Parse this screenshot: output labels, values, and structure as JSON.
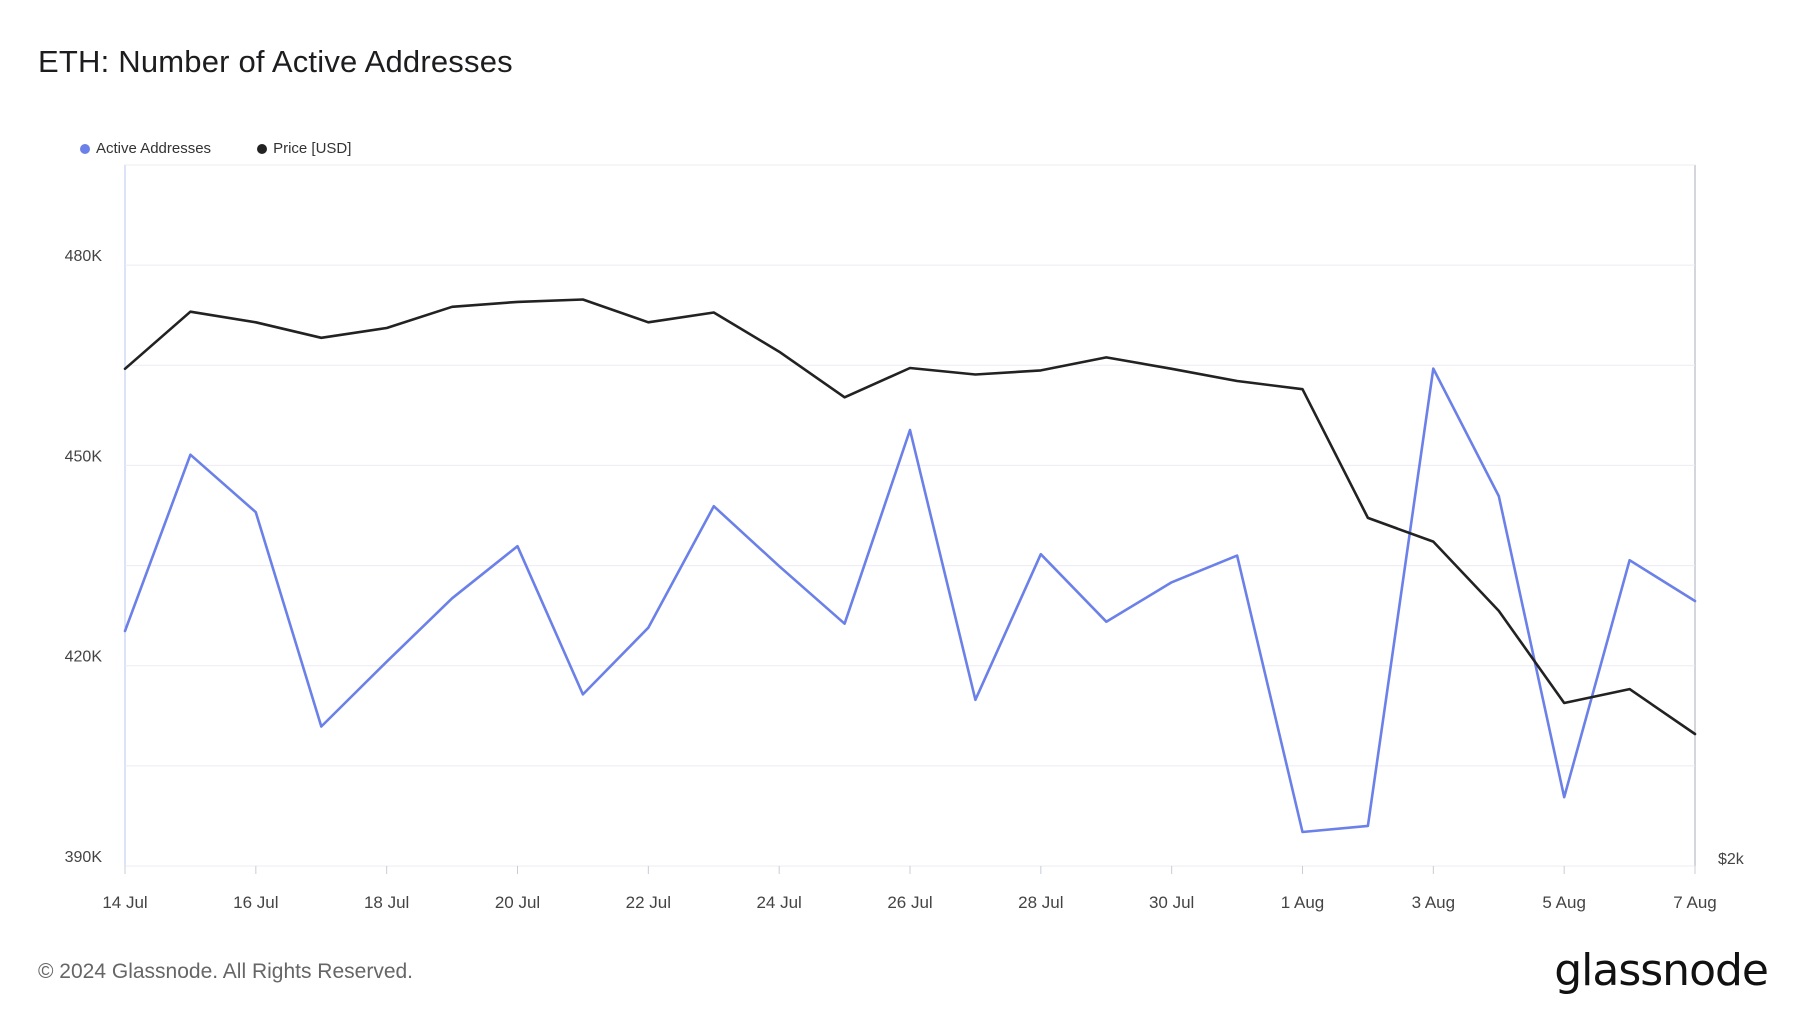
{
  "header": {
    "title": "ETH: Number of Active Addresses"
  },
  "legend": {
    "items": [
      {
        "label": "Active Addresses",
        "color": "#6b80e8"
      },
      {
        "label": "Price [USD]",
        "color": "#222222"
      }
    ]
  },
  "footer": {
    "copyright": "© 2024 Glassnode. All Rights Reserved.",
    "logo": "glassnode"
  },
  "chart_data": {
    "type": "line",
    "title": "ETH: Number of Active Addresses",
    "x": [
      "14 Jul",
      "15 Jul",
      "16 Jul",
      "17 Jul",
      "18 Jul",
      "19 Jul",
      "20 Jul",
      "21 Jul",
      "22 Jul",
      "23 Jul",
      "24 Jul",
      "25 Jul",
      "26 Jul",
      "27 Jul",
      "28 Jul",
      "29 Jul",
      "30 Jul",
      "31 Jul",
      "1 Aug",
      "2 Aug",
      "3 Aug",
      "4 Aug",
      "5 Aug",
      "6 Aug",
      "7 Aug"
    ],
    "x_tick_labels": [
      "14 Jul",
      "16 Jul",
      "18 Jul",
      "20 Jul",
      "22 Jul",
      "24 Jul",
      "26 Jul",
      "28 Jul",
      "30 Jul",
      "1 Aug",
      "3 Aug",
      "5 Aug",
      "7 Aug"
    ],
    "y_left": {
      "ticks": [
        "390K",
        "420K",
        "450K",
        "480K"
      ],
      "tick_values": [
        390000,
        420000,
        450000,
        480000
      ],
      "ylim": [
        390000,
        495000
      ]
    },
    "y_right": {
      "ticks": [
        "$2k"
      ]
    },
    "grid": true,
    "legend_position": "top-left",
    "series": [
      {
        "name": "Active Addresses",
        "color": "#6b80e8",
        "axis": "left",
        "values": [
          425200,
          451600,
          443000,
          410900,
          420600,
          430100,
          437900,
          415700,
          425700,
          443900,
          434900,
          426300,
          455300,
          414900,
          436700,
          426600,
          432500,
          436500,
          395100,
          396000,
          464500,
          445400,
          400300,
          435800,
          429700
        ]
      },
      {
        "name": "Price [USD]",
        "color": "#222222",
        "axis": "right",
        "axis_min_label": "$2k",
        "values": [
          3470,
          3540,
          3527,
          3508,
          3520,
          3546,
          3552,
          3555,
          3527,
          3539,
          3491,
          3435,
          3471,
          3463,
          3468,
          3484,
          3470,
          3455,
          3445,
          3287,
          3258,
          3173,
          3060,
          3077,
          3022
        ]
      }
    ]
  }
}
